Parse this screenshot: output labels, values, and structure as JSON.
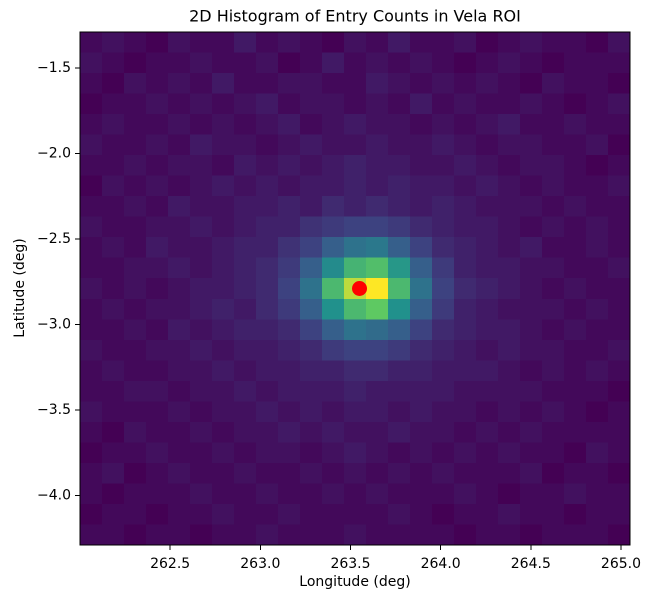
{
  "chart_data": {
    "type": "heatmap",
    "title": "2D Histogram of Entry Counts in Vela ROI",
    "xlabel": "Longitude (deg)",
    "ylabel": "Latitude (deg)",
    "colormap": "viridis",
    "xlim": [
      262.0,
      265.05
    ],
    "ylim": [
      -4.29,
      -1.29
    ],
    "xticks": [
      262.5,
      {
        "value": 263,
        "label": "263.0"
      },
      263.5,
      {
        "value": 264,
        "label": "264.0"
      },
      264.5,
      {
        "value": 265,
        "label": "265.0"
      }
    ],
    "yticks": [
      {
        "value": -1.5,
        "label": "−1.5"
      },
      {
        "value": -2,
        "label": "−2.0"
      },
      {
        "value": -2.5,
        "label": "−2.5"
      },
      {
        "value": -3,
        "label": "−3.0"
      },
      {
        "value": -3.5,
        "label": "−3.5"
      },
      {
        "value": -4,
        "label": "−4.0"
      }
    ],
    "values": [
      [
        1,
        2,
        1,
        0,
        2,
        1,
        1,
        3,
        1,
        2,
        1,
        0,
        2,
        1,
        3,
        1,
        1,
        2,
        0,
        1,
        2,
        1,
        1,
        0,
        2
      ],
      [
        2,
        1,
        0,
        1,
        1,
        2,
        1,
        1,
        2,
        0,
        1,
        3,
        1,
        2,
        1,
        2,
        1,
        0,
        1,
        2,
        1,
        0,
        1,
        1,
        1
      ],
      [
        1,
        0,
        2,
        1,
        2,
        1,
        3,
        1,
        1,
        2,
        2,
        1,
        1,
        3,
        2,
        1,
        2,
        1,
        2,
        1,
        0,
        2,
        1,
        1,
        0
      ],
      [
        0,
        1,
        1,
        2,
        1,
        2,
        1,
        2,
        3,
        1,
        2,
        2,
        1,
        2,
        1,
        3,
        1,
        2,
        1,
        1,
        2,
        1,
        0,
        1,
        2
      ],
      [
        1,
        2,
        1,
        1,
        2,
        1,
        2,
        1,
        2,
        3,
        1,
        2,
        3,
        2,
        2,
        1,
        2,
        1,
        2,
        3,
        1,
        1,
        2,
        1,
        1
      ],
      [
        2,
        1,
        1,
        2,
        1,
        3,
        2,
        2,
        1,
        2,
        3,
        2,
        2,
        3,
        2,
        2,
        3,
        2,
        1,
        2,
        2,
        1,
        1,
        2,
        0
      ],
      [
        1,
        1,
        2,
        1,
        2,
        2,
        1,
        3,
        2,
        3,
        2,
        3,
        4,
        3,
        3,
        2,
        2,
        3,
        2,
        1,
        2,
        2,
        1,
        0,
        1
      ],
      [
        0,
        2,
        1,
        2,
        1,
        2,
        3,
        2,
        3,
        2,
        3,
        3,
        4,
        3,
        4,
        3,
        3,
        2,
        3,
        2,
        1,
        2,
        1,
        1,
        2
      ],
      [
        1,
        1,
        2,
        1,
        3,
        2,
        2,
        3,
        3,
        4,
        3,
        5,
        4,
        5,
        4,
        3,
        4,
        3,
        2,
        2,
        2,
        1,
        2,
        1,
        1
      ],
      [
        2,
        1,
        1,
        2,
        2,
        3,
        2,
        3,
        4,
        4,
        6,
        7,
        8,
        8,
        7,
        5,
        4,
        3,
        3,
        2,
        1,
        2,
        1,
        2,
        1
      ],
      [
        1,
        2,
        1,
        3,
        2,
        2,
        3,
        4,
        4,
        6,
        8,
        12,
        15,
        16,
        12,
        8,
        5,
        4,
        3,
        2,
        3,
        1,
        1,
        2,
        1
      ],
      [
        1,
        1,
        2,
        2,
        3,
        2,
        3,
        4,
        5,
        7,
        12,
        19,
        26,
        28,
        21,
        12,
        7,
        4,
        3,
        3,
        2,
        2,
        1,
        1,
        2
      ],
      [
        2,
        1,
        2,
        1,
        2,
        3,
        3,
        4,
        5,
        8,
        15,
        27,
        36,
        40,
        27,
        15,
        8,
        5,
        4,
        3,
        2,
        1,
        2,
        1,
        1
      ],
      [
        1,
        2,
        1,
        2,
        2,
        3,
        4,
        3,
        5,
        7,
        12,
        20,
        27,
        30,
        20,
        12,
        7,
        4,
        3,
        2,
        2,
        2,
        1,
        2,
        1
      ],
      [
        1,
        1,
        2,
        1,
        3,
        2,
        3,
        4,
        4,
        5,
        8,
        12,
        15,
        14,
        12,
        8,
        5,
        4,
        3,
        3,
        2,
        1,
        2,
        1,
        1
      ],
      [
        2,
        1,
        1,
        2,
        2,
        3,
        2,
        3,
        3,
        4,
        5,
        7,
        8,
        8,
        7,
        5,
        4,
        3,
        2,
        3,
        2,
        2,
        1,
        1,
        2
      ],
      [
        1,
        2,
        1,
        1,
        2,
        2,
        3,
        2,
        3,
        3,
        4,
        4,
        5,
        5,
        4,
        4,
        3,
        3,
        3,
        2,
        1,
        2,
        1,
        2,
        1
      ],
      [
        1,
        1,
        2,
        2,
        1,
        2,
        2,
        3,
        2,
        3,
        3,
        3,
        4,
        3,
        3,
        3,
        3,
        2,
        2,
        2,
        2,
        1,
        1,
        1,
        0
      ],
      [
        2,
        1,
        1,
        1,
        2,
        1,
        2,
        2,
        3,
        2,
        3,
        2,
        3,
        3,
        2,
        3,
        2,
        2,
        1,
        2,
        1,
        2,
        1,
        0,
        1
      ],
      [
        1,
        0,
        2,
        1,
        1,
        2,
        1,
        2,
        2,
        3,
        2,
        3,
        2,
        2,
        3,
        2,
        2,
        1,
        2,
        1,
        2,
        1,
        1,
        1,
        1
      ],
      [
        0,
        1,
        1,
        2,
        1,
        1,
        2,
        1,
        2,
        2,
        1,
        2,
        3,
        2,
        1,
        2,
        1,
        2,
        1,
        2,
        1,
        1,
        0,
        2,
        1
      ],
      [
        1,
        2,
        0,
        1,
        2,
        1,
        1,
        2,
        1,
        1,
        2,
        1,
        2,
        1,
        2,
        1,
        2,
        1,
        1,
        1,
        2,
        0,
        1,
        1,
        0
      ],
      [
        1,
        0,
        1,
        1,
        1,
        2,
        1,
        1,
        2,
        1,
        1,
        2,
        1,
        2,
        1,
        1,
        1,
        2,
        1,
        0,
        1,
        1,
        2,
        1,
        1
      ],
      [
        0,
        1,
        1,
        0,
        1,
        1,
        2,
        1,
        1,
        2,
        1,
        1,
        1,
        1,
        2,
        1,
        0,
        1,
        1,
        2,
        1,
        1,
        0,
        1,
        1
      ],
      [
        1,
        1,
        0,
        1,
        1,
        0,
        1,
        1,
        2,
        1,
        1,
        1,
        2,
        1,
        1,
        1,
        1,
        0,
        1,
        1,
        0,
        1,
        1,
        1,
        0
      ]
    ],
    "marker": {
      "x": 263.55,
      "y": -2.79,
      "color": "#ff0000"
    }
  }
}
